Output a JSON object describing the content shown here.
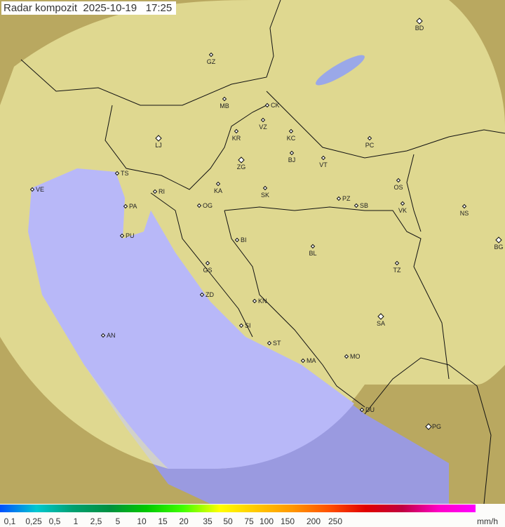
{
  "title": {
    "label": "Radar kompozit",
    "date": "2025-10-19",
    "time": "17:25"
  },
  "legend": {
    "unit": "mm/h",
    "ticks": [
      "0,1",
      "0,25",
      "0,5",
      "1",
      "2,5",
      "5",
      "10",
      "15",
      "20",
      "35",
      "50",
      "75",
      "100",
      "150",
      "200",
      "250"
    ],
    "colors": [
      "#0050ff",
      "#00c8d0",
      "#00a070",
      "#009040",
      "#00c800",
      "#40ff00",
      "#ffff00",
      "#ffc800",
      "#ff9600",
      "#ff5000",
      "#e00000",
      "#c00040",
      "#ff00c8",
      "#ff00ff"
    ]
  },
  "map": {
    "colors": {
      "land": "#c8d89a",
      "sea": "#b8b8f8",
      "outside": "#7a7a6a",
      "coverage": "#ffffff"
    },
    "cities": [
      "BD",
      "GZ",
      "MB",
      "CK",
      "VZ",
      "KR",
      "KC",
      "PC",
      "LJ",
      "BJ",
      "VT",
      "ZG",
      "TS",
      "VE",
      "OS",
      "KA",
      "SK",
      "RI",
      "PZ",
      "SB",
      "VK",
      "NS",
      "PA",
      "OG",
      "PU",
      "BI",
      "BG",
      "BL",
      "TZ",
      "GS",
      "ZD",
      "KN",
      "SA",
      "SI",
      "AN",
      "ST",
      "MA",
      "MO",
      "DU",
      "PG"
    ]
  }
}
